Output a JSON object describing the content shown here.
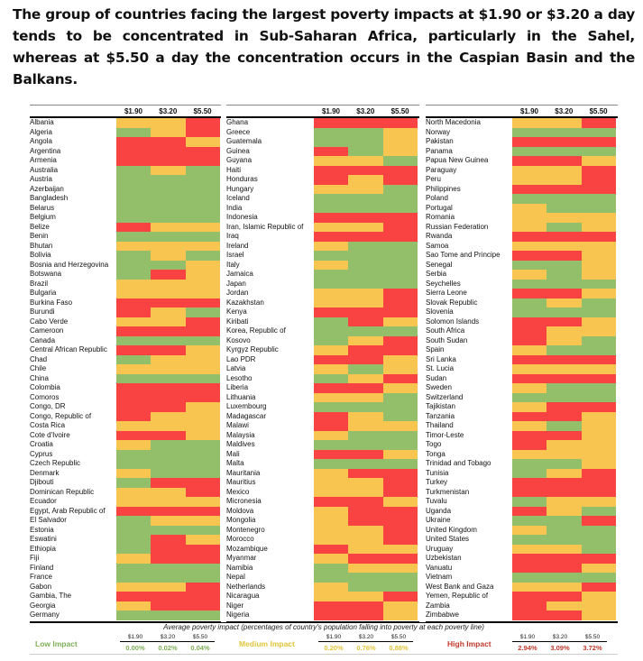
{
  "title": "The group of countries facing the largest poverty impacts at $1.90 or $3.20 a day tends to be concentrated in Sub-Saharan Africa, particularly in the Sahel, whereas at $5.50 a day the concentration occurs in the Caspian Basin and the Balkans.",
  "chart_data": {
    "type": "heatmap",
    "columns": [
      "$1.90",
      "$3.20",
      "$5.50"
    ],
    "levels": {
      "L": "Low Impact",
      "M": "Medium Impact",
      "H": "High Impact"
    },
    "colors": {
      "L": "#93bf6b",
      "M": "#f8c550",
      "H": "#f94343"
    },
    "caption": "Average poverty impact (percentages of country's population falling into poverty at each poverty line)",
    "legend": [
      {
        "label": "Low Impact",
        "level": "L",
        "values": [
          "0.00%",
          "0.02%",
          "0.04%"
        ]
      },
      {
        "label": "Medium Impact",
        "level": "M",
        "values": [
          "0.20%",
          "0.76%",
          "0.88%"
        ]
      },
      {
        "label": "High Impact",
        "level": "H",
        "values": [
          "2.94%",
          "3.09%",
          "3.72%"
        ]
      }
    ],
    "panels": [
      [
        [
          "Albania",
          "MMH"
        ],
        [
          "Algeria",
          "LMH"
        ],
        [
          "Angola",
          "HHM"
        ],
        [
          "Argentina",
          "HHH"
        ],
        [
          "Armenia",
          "HHH"
        ],
        [
          "Australia",
          "LML"
        ],
        [
          "Austria",
          "LLL"
        ],
        [
          "Azerbaijan",
          "LLL"
        ],
        [
          "Bangladesh",
          "LLL"
        ],
        [
          "Belarus",
          "LLL"
        ],
        [
          "Belgium",
          "LLL"
        ],
        [
          "Belize",
          "HMM"
        ],
        [
          "Benin",
          "LLL"
        ],
        [
          "Bhutan",
          "MMM"
        ],
        [
          "Bolivia",
          "LML"
        ],
        [
          "Bosnia and Herzegovina",
          "LLM"
        ],
        [
          "Botswana",
          "LHM"
        ],
        [
          "Brazil",
          "MMM"
        ],
        [
          "Bulgaria",
          "MMM"
        ],
        [
          "Burkina Faso",
          "HHH"
        ],
        [
          "Burundi",
          "HML"
        ],
        [
          "Cabo Verde",
          "MMH"
        ],
        [
          "Cameroon",
          "HHH"
        ],
        [
          "Canada",
          "LLL"
        ],
        [
          "Central African Republic",
          "HHM"
        ],
        [
          "Chad",
          "LMM"
        ],
        [
          "Chile",
          "MMM"
        ],
        [
          "China",
          "LLL"
        ],
        [
          "Colombia",
          "HHH"
        ],
        [
          "Comoros",
          "HHH"
        ],
        [
          "Congo, DR",
          "HHM"
        ],
        [
          "Congo, Republic of",
          "HMM"
        ],
        [
          "Costa Rica",
          "MMM"
        ],
        [
          "Cote d'Ivoire",
          "HHM"
        ],
        [
          "Croatia",
          "MLL"
        ],
        [
          "Cyprus",
          "LLL"
        ],
        [
          "Czech Republic",
          "LLL"
        ],
        [
          "Denmark",
          "MLL"
        ],
        [
          "Djibouti",
          "LHH"
        ],
        [
          "Dominican Republic",
          "MMH"
        ],
        [
          "Ecuador",
          "MMM"
        ],
        [
          "Egypt, Arab Republic of",
          "HHH"
        ],
        [
          "El Salvador",
          "LMM"
        ],
        [
          "Estonia",
          "LLL"
        ],
        [
          "Eswatini",
          "LHM"
        ],
        [
          "Ethiopia",
          "LHH"
        ],
        [
          "Fiji",
          "MHH"
        ],
        [
          "Finland",
          "LLL"
        ],
        [
          "France",
          "LLL"
        ],
        [
          "Gabon",
          "MMH"
        ],
        [
          "Gambia, The",
          "HHH"
        ],
        [
          "Georgia",
          "MHH"
        ],
        [
          "Germany",
          "LLL"
        ]
      ],
      [
        [
          "Ghana",
          "HHH"
        ],
        [
          "Greece",
          "LLM"
        ],
        [
          "Guatemala",
          "LLM"
        ],
        [
          "Guinea",
          "HLM"
        ],
        [
          "Guyana",
          "MML"
        ],
        [
          "Haiti",
          "HHH"
        ],
        [
          "Honduras",
          "HMH"
        ],
        [
          "Hungary",
          "MML"
        ],
        [
          "Iceland",
          "LLL"
        ],
        [
          "India",
          "LLL"
        ],
        [
          "Indonesia",
          "HHH"
        ],
        [
          "Iran, Islamic Republic of",
          "MMH"
        ],
        [
          "Iraq",
          "HHH"
        ],
        [
          "Ireland",
          "MLL"
        ],
        [
          "Israel",
          "LLL"
        ],
        [
          "Italy",
          "MLL"
        ],
        [
          "Jamaica",
          "LLL"
        ],
        [
          "Japan",
          "LLL"
        ],
        [
          "Jordan",
          "MMH"
        ],
        [
          "Kazakhstan",
          "MMH"
        ],
        [
          "Kenya",
          "HHH"
        ],
        [
          "Kiribati",
          "LHM"
        ],
        [
          "Korea, Republic of",
          "LLL"
        ],
        [
          "Kosovo",
          "LMH"
        ],
        [
          "Kyrgyz Republic",
          "MHH"
        ],
        [
          "Lao PDR",
          "HHM"
        ],
        [
          "Latvia",
          "MLM"
        ],
        [
          "Lesotho",
          "LMH"
        ],
        [
          "Liberia",
          "HHM"
        ],
        [
          "Lithuania",
          "MML"
        ],
        [
          "Luxembourg",
          "LLL"
        ],
        [
          "Madagascar",
          "HML"
        ],
        [
          "Malawi",
          "HMM"
        ],
        [
          "Malaysia",
          "MLL"
        ],
        [
          "Maldives",
          "LLL"
        ],
        [
          "Mali",
          "HHM"
        ],
        [
          "Malta",
          "LLL"
        ],
        [
          "Mauritania",
          "MHH"
        ],
        [
          "Mauritius",
          "MMH"
        ],
        [
          "Mexico",
          "MMH"
        ],
        [
          "Micronesia",
          "HHM"
        ],
        [
          "Moldova",
          "MHH"
        ],
        [
          "Mongolia",
          "MHH"
        ],
        [
          "Montenegro",
          "MMH"
        ],
        [
          "Morocco",
          "MMH"
        ],
        [
          "Mozambique",
          "HMM"
        ],
        [
          "Myanmar",
          "MHH"
        ],
        [
          "Namibia",
          "LMM"
        ],
        [
          "Nepal",
          "LLL"
        ],
        [
          "Netherlands",
          "MLL"
        ],
        [
          "Nicaragua",
          "MMH"
        ],
        [
          "Niger",
          "HHM"
        ],
        [
          "Nigeria",
          "HHM"
        ]
      ],
      [
        [
          "North Macedonia",
          "MMH"
        ],
        [
          "Norway",
          "LLL"
        ],
        [
          "Pakistan",
          "HHH"
        ],
        [
          "Panama",
          "LLL"
        ],
        [
          "Papua New Guinea",
          "HHM"
        ],
        [
          "Paraguay",
          "MMH"
        ],
        [
          "Peru",
          "MMH"
        ],
        [
          "Philippines",
          "HHH"
        ],
        [
          "Poland",
          "LLL"
        ],
        [
          "Portugal",
          "MLL"
        ],
        [
          "Romania",
          "MMM"
        ],
        [
          "Russian Federation",
          "MLM"
        ],
        [
          "Rwanda",
          "HHH"
        ],
        [
          "Samoa",
          "MMM"
        ],
        [
          "Sao Tome and Principe",
          "HHM"
        ],
        [
          "Senegal",
          "LLM"
        ],
        [
          "Serbia",
          "MLM"
        ],
        [
          "Seychelles",
          "LLL"
        ],
        [
          "Sierra Leone",
          "HHM"
        ],
        [
          "Slovak Republic",
          "LML"
        ],
        [
          "Slovenia",
          "LLL"
        ],
        [
          "Solomon Islands",
          "HHM"
        ],
        [
          "South Africa",
          "HMM"
        ],
        [
          "South Sudan",
          "HML"
        ],
        [
          "Spain",
          "MLL"
        ],
        [
          "Sri Lanka",
          "HHH"
        ],
        [
          "St. Lucia",
          "MMM"
        ],
        [
          "Sudan",
          "HHH"
        ],
        [
          "Sweden",
          "MLL"
        ],
        [
          "Switzerland",
          "LLL"
        ],
        [
          "Tajikistan",
          "MHH"
        ],
        [
          "Tanzania",
          "HHM"
        ],
        [
          "Thailand",
          "MLM"
        ],
        [
          "Timor-Leste",
          "HHM"
        ],
        [
          "Togo",
          "HMM"
        ],
        [
          "Tonga",
          "MMM"
        ],
        [
          "Trinidad and Tobago",
          "LLM"
        ],
        [
          "Tunisia",
          "LMH"
        ],
        [
          "Turkey",
          "HHH"
        ],
        [
          "Turkmenistan",
          "HHH"
        ],
        [
          "Tuvalu",
          "LMM"
        ],
        [
          "Uganda",
          "HML"
        ],
        [
          "Ukraine",
          "LLH"
        ],
        [
          "United Kingdom",
          "MLL"
        ],
        [
          "United States",
          "LLL"
        ],
        [
          "Uruguay",
          "MML"
        ],
        [
          "Uzbekistan",
          "HHH"
        ],
        [
          "Vanuatu",
          "HHM"
        ],
        [
          "Vietnam",
          "LLL"
        ],
        [
          "West Bank and Gaza",
          "MMH"
        ],
        [
          "Yemen, Republic of",
          "HHM"
        ],
        [
          "Zambia",
          "HMM"
        ],
        [
          "Zimbabwe",
          "HHM"
        ]
      ]
    ]
  }
}
